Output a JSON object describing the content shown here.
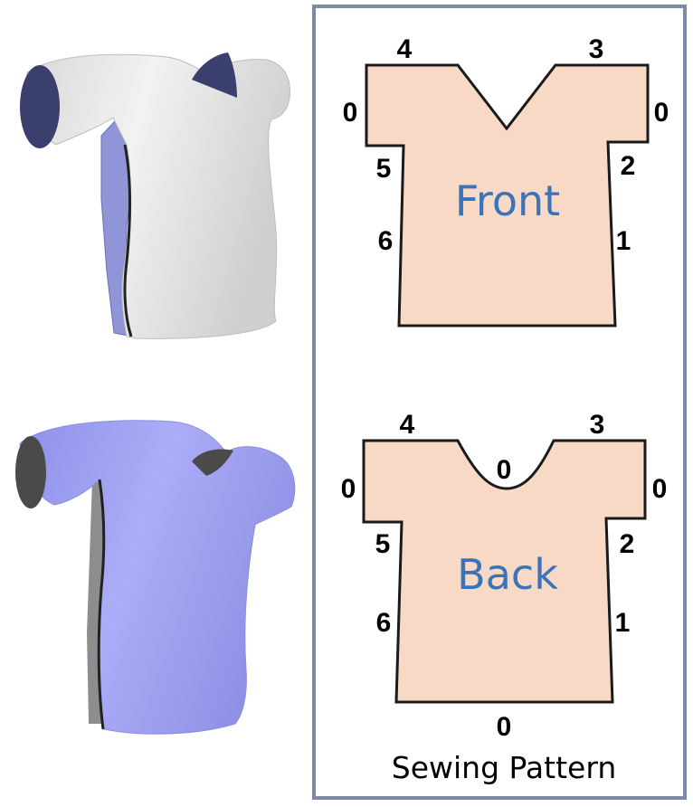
{
  "colors": {
    "panel_border": "#7a8ba8",
    "pattern_fill": "#f8d9c6",
    "pattern_stroke": "#1a1a1a",
    "title_blue": "#3b73b9",
    "garment_front": "#ebebeb",
    "garment_front_inside": "#8f95d6",
    "garment_front_opening": "#3a3f6e",
    "garment_back": "#a3a5f4",
    "garment_back_inside": "#8d8d8d",
    "garment_back_opening": "#4a4a4a"
  },
  "render_front": {
    "label": "garment-render-front"
  },
  "render_back": {
    "label": "garment-render-back"
  },
  "pattern": {
    "caption": "Sewing Pattern",
    "front": {
      "title": "Front",
      "edges": {
        "top_left": "4",
        "top_right": "3",
        "sleeve_left": "0",
        "sleeve_right": "0",
        "under_left": "5",
        "under_right": "2",
        "side_left": "6",
        "side_right": "1"
      }
    },
    "back": {
      "title": "Back",
      "edges": {
        "top_left": "4",
        "top_right": "3",
        "neck": "0",
        "sleeve_left": "0",
        "sleeve_right": "0",
        "under_left": "5",
        "under_right": "2",
        "side_left": "6",
        "side_right": "1",
        "hem": "0"
      }
    }
  }
}
